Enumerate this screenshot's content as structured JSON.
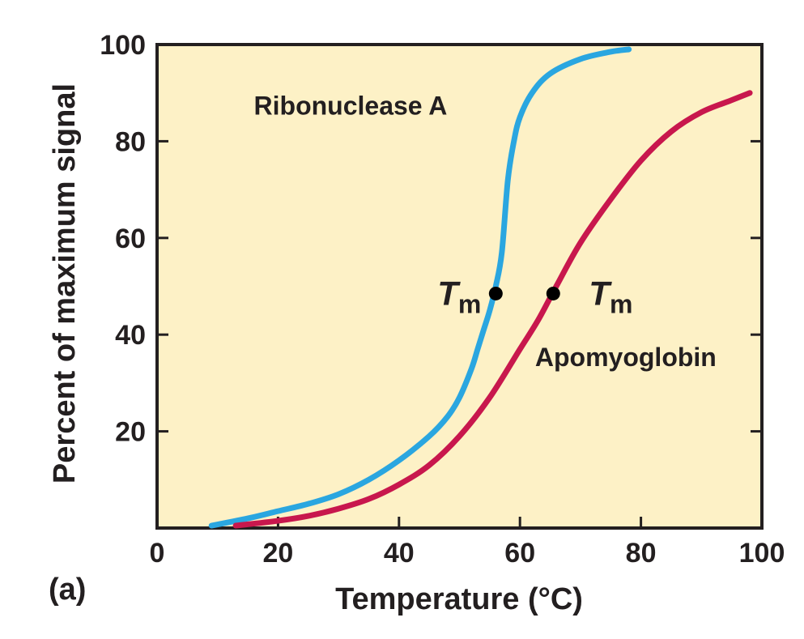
{
  "panel_label": "(a)",
  "chart_data": {
    "type": "line",
    "xlabel": "Temperature (°C)",
    "ylabel": "Percent of maximum signal",
    "xlim": [
      0,
      100
    ],
    "ylim": [
      0,
      100
    ],
    "x_ticks": [
      0,
      20,
      40,
      60,
      80,
      100
    ],
    "y_ticks": [
      20,
      40,
      60,
      80,
      100
    ],
    "grid": false,
    "series": [
      {
        "name": "Ribonuclease A",
        "color": "#2aa6e0",
        "x": [
          9,
          15,
          20,
          25,
          30,
          35,
          40,
          45,
          48,
          50,
          52,
          53,
          54,
          55,
          56,
          57,
          58,
          59,
          60,
          62,
          65,
          70,
          75,
          78
        ],
        "y": [
          0.5,
          2,
          3.5,
          5,
          7,
          10,
          14,
          19,
          23,
          27,
          33,
          37,
          41,
          45,
          50,
          57,
          72,
          80,
          85,
          90,
          94,
          97,
          98.5,
          99
        ],
        "tm": {
          "x": 56,
          "y": 48.5
        }
      },
      {
        "name": "Apomyoglobin",
        "color": "#c8174d",
        "x": [
          13,
          20,
          25,
          30,
          35,
          40,
          45,
          50,
          55,
          60,
          63,
          66,
          70,
          75,
          80,
          85,
          90,
          95,
          98
        ],
        "y": [
          0.5,
          1.5,
          2.5,
          4,
          6,
          9,
          13,
          19,
          27,
          37,
          43,
          50,
          59,
          68,
          76,
          82,
          86,
          88.5,
          90
        ],
        "tm": {
          "x": 65.5,
          "y": 48.5
        }
      }
    ],
    "annotations": [
      {
        "text": "Ribonuclease A",
        "x": 16,
        "y": 85.5
      },
      {
        "text": "Apomyoglobin",
        "x": 62.5,
        "y": 33.5
      }
    ],
    "tm_label": {
      "main": "T",
      "sub": "m"
    }
  }
}
